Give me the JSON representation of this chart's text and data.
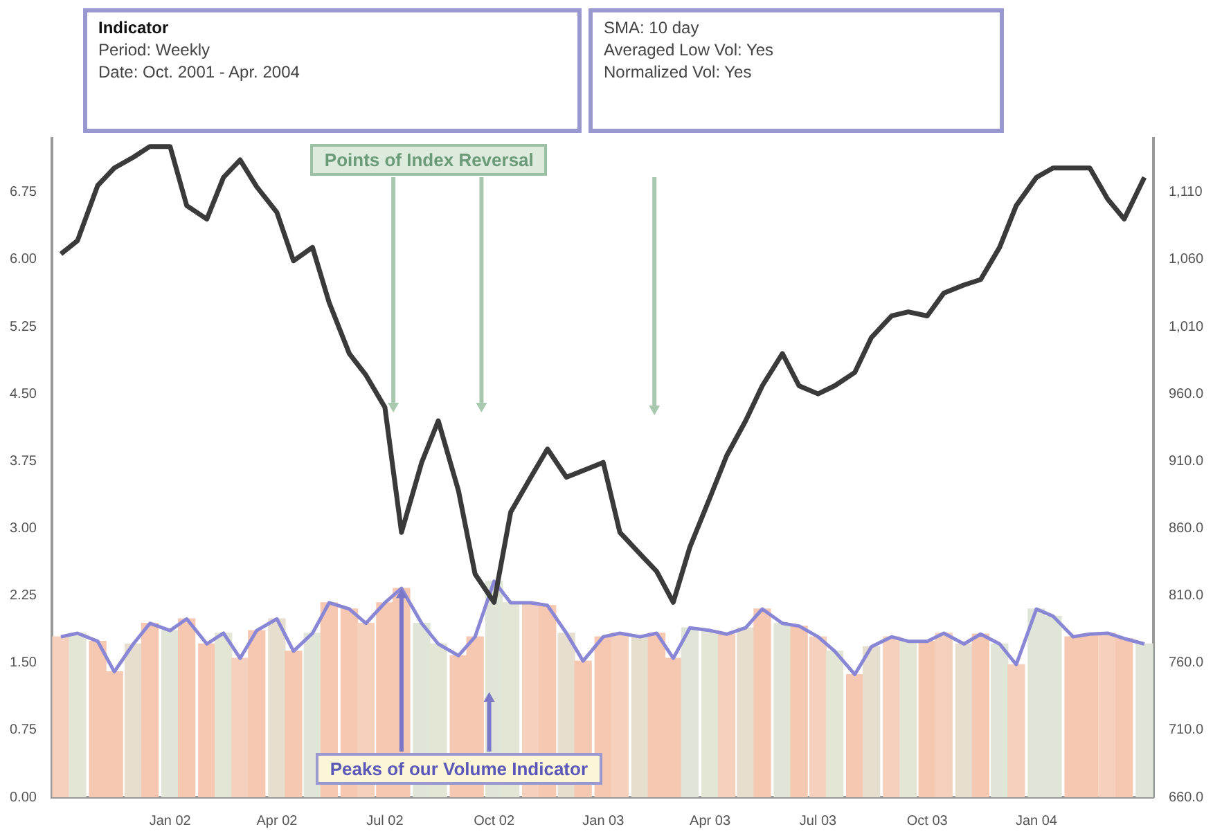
{
  "chart_data": {
    "type": "line",
    "title": "Indicator",
    "subtitle": "Period: Weekly",
    "annotations": [
      "Date: Oct. 2001 - Apr. 2004",
      "SMA: 10 day",
      "Averaged Low Vol: Yes",
      "Normalized Vol: Yes",
      "Points of Index Reversal",
      {
        "text": "Peaks of our Volume Indicator",
        "x": "2002-07-15",
        "y": 2.33
      }
    ],
    "x": [
      "2001-10-01",
      "2001-10-15",
      "2001-11-01",
      "2001-11-15",
      "2001-12-01",
      "2001-12-15",
      "2002-01-01",
      "2002-01-15",
      "2002-02-01",
      "2002-02-15",
      "2002-03-01",
      "2002-03-15",
      "2002-04-01",
      "2002-04-15",
      "2002-05-01",
      "2002-05-15",
      "2002-06-01",
      "2002-06-15",
      "2002-07-01",
      "2002-07-15",
      "2002-08-01",
      "2002-08-15",
      "2002-09-01",
      "2002-09-15",
      "2002-10-01",
      "2002-10-15",
      "2002-11-01",
      "2002-11-15",
      "2002-12-01",
      "2002-12-15",
      "2003-01-01",
      "2003-01-15",
      "2003-02-01",
      "2003-02-15",
      "2003-03-01",
      "2003-03-15",
      "2003-04-01",
      "2003-04-15",
      "2003-05-01",
      "2003-05-15",
      "2003-06-01",
      "2003-06-15",
      "2003-07-01",
      "2003-07-15",
      "2003-08-01",
      "2003-08-15",
      "2003-09-01",
      "2003-09-15",
      "2003-10-01",
      "2003-10-15",
      "2003-11-01",
      "2003-11-15",
      "2003-12-01",
      "2003-12-15",
      "2004-01-01",
      "2004-01-15",
      "2004-02-01",
      "2004-02-15",
      "2004-03-01",
      "2004-03-15",
      "2004-04-01"
    ],
    "series": [
      {
        "type": "bar",
        "colors": [
          "#f4d0bd",
          "#e3e6d4",
          "#f6c8b2",
          "#f6c8b2",
          "#e6dfcf",
          "#f6c8b2",
          "#dfe6d8",
          "#f6c8b2",
          "#f6c8b2",
          "#e3e6d4",
          "#f4d0bd",
          "#f6c8b2",
          "#e6dfcf",
          "#f6c8b2",
          "#dfe6d8",
          "#f6c8b2",
          "#f6c8b2",
          "#f4d0bd",
          "#f6c8b2",
          "#f6c8b2",
          "#dfe6d8",
          "#e3e6d4",
          "#f6c8b2",
          "#f6c8b2",
          "#dfe6d8",
          "#e3e6d4",
          "#f4d0bd",
          "#f6c8b2",
          "#e6dfcf",
          "#f6c8b2",
          "#f6c8b2",
          "#f4d0bd",
          "#e6dfcf",
          "#f6c8b2",
          "#f6c8b2",
          "#dfe6d8",
          "#e3e6d4",
          "#f4d0bd",
          "#e6dfcf",
          "#f6c8b2",
          "#dfe6d8",
          "#f6c8b2",
          "#f4d0bd",
          "#e3e6d4",
          "#f6c8b2",
          "#e6dfcf",
          "#f4d0bd",
          "#e3e6d4",
          "#f6c8b2",
          "#f4d0bd",
          "#e6dfcf",
          "#f6c8b2",
          "#dfe6d8",
          "#f4d0bd",
          "#dfe6d8",
          "#dfe6d8",
          "#f6c8b2",
          "#f6c8b2",
          "#f4d0bd",
          "#f6c8b2",
          "#dfe6d8"
        ],
        "values": [
          1.79,
          1.83,
          1.74,
          1.4,
          1.71,
          1.94,
          1.86,
          1.99,
          1.71,
          1.83,
          1.55,
          1.86,
          1.99,
          1.63,
          1.83,
          2.17,
          2.1,
          1.94,
          2.17,
          2.33,
          1.94,
          1.71,
          1.58,
          1.79,
          2.41,
          2.17,
          2.17,
          2.14,
          1.83,
          1.52,
          1.79,
          1.83,
          1.79,
          1.83,
          1.55,
          1.89,
          1.86,
          1.82,
          1.89,
          2.1,
          1.94,
          1.91,
          1.79,
          1.63,
          1.37,
          1.68,
          1.79,
          1.74,
          1.74,
          1.83,
          1.71,
          1.82,
          1.71,
          1.48,
          2.1,
          2.02,
          1.79,
          1.82,
          1.83,
          1.77,
          1.71
        ]
      },
      {
        "color": "#8a86d6",
        "values": [
          1.79,
          1.83,
          1.74,
          1.4,
          1.71,
          1.94,
          1.86,
          1.99,
          1.71,
          1.83,
          1.55,
          1.86,
          1.99,
          1.63,
          1.83,
          2.17,
          2.1,
          1.94,
          2.17,
          2.33,
          1.94,
          1.71,
          1.58,
          1.79,
          2.41,
          2.17,
          2.17,
          2.14,
          1.83,
          1.52,
          1.79,
          1.83,
          1.79,
          1.83,
          1.55,
          1.89,
          1.86,
          1.82,
          1.89,
          2.1,
          1.94,
          1.91,
          1.79,
          1.63,
          1.37,
          1.68,
          1.79,
          1.74,
          1.74,
          1.83,
          1.71,
          1.82,
          1.71,
          1.48,
          2.1,
          2.02,
          1.79,
          1.82,
          1.83,
          1.77,
          1.71
        ]
      },
      {
        "axis": "y2",
        "color": "#3a3a3a",
        "values": [
          1064,
          1074,
          1115,
          1128,
          1136,
          1144,
          1144,
          1100,
          1090,
          1121,
          1134,
          1114,
          1095,
          1059,
          1069,
          1028,
          990,
          974,
          950,
          857,
          909,
          940,
          888,
          826,
          805,
          872,
          898,
          919,
          898,
          903,
          909,
          857,
          841,
          828,
          805,
          846,
          883,
          914,
          940,
          966,
          990,
          966,
          960,
          966,
          976,
          1002,
          1018,
          1021,
          1018,
          1035,
          1041,
          1045,
          1069,
          1100,
          1121,
          1128,
          1128,
          1128,
          1105,
          1090,
          1121
        ]
      }
    ],
    "xlim": [
      "2001-10-01",
      "2004-04-01"
    ],
    "xticks": [
      {
        "value": "2002-01-01",
        "label": "Jan 02"
      },
      {
        "value": "2002-04-01",
        "label": "Apr 02"
      },
      {
        "value": "2002-07-01",
        "label": "Jul 02"
      },
      {
        "value": "2002-10-01",
        "label": "Oct 02"
      },
      {
        "value": "2003-01-01",
        "label": "Jan 03"
      },
      {
        "value": "2003-04-01",
        "label": "Apr 03"
      },
      {
        "value": "2003-07-01",
        "label": "Jul 03"
      },
      {
        "value": "2003-10-01",
        "label": "Oct 03"
      },
      {
        "value": "2004-01-01",
        "label": "Jan 04"
      }
    ],
    "ylim": [
      0,
      7.35
    ],
    "yticks": [
      {
        "value": 0,
        "label": "0.00"
      },
      {
        "value": 0.75,
        "label": "0.75"
      },
      {
        "value": 1.5,
        "label": "1.50"
      },
      {
        "value": 2.25,
        "label": "2.25"
      },
      {
        "value": 3,
        "label": "3.00"
      },
      {
        "value": 3.75,
        "label": "3.75"
      },
      {
        "value": 4.5,
        "label": "4.50"
      },
      {
        "value": 5.25,
        "label": "5.25"
      },
      {
        "value": 6,
        "label": "6.00"
      },
      {
        "value": 6.75,
        "label": "6.75"
      }
    ],
    "y2lim": [
      660,
      1150
    ],
    "y2ticks": [
      {
        "value": 660,
        "label": "660.0"
      },
      {
        "value": 710,
        "label": "710.0"
      },
      {
        "value": 760,
        "label": "760.0"
      },
      {
        "value": 810,
        "label": "810.0"
      },
      {
        "value": 860,
        "label": "860.0"
      },
      {
        "value": 910,
        "label": "910.0"
      },
      {
        "value": 960,
        "label": "960.0"
      },
      {
        "value": 1010,
        "label": "1,010"
      },
      {
        "value": 1060,
        "label": "1,060"
      },
      {
        "value": 1110,
        "label": "1,110"
      }
    ],
    "grid": false,
    "legend": false,
    "marker": "none",
    "line_style": "solid"
  }
}
